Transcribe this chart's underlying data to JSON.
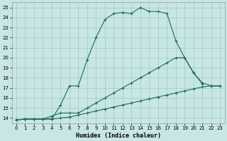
{
  "xlabel": "Humidex (Indice chaleur)",
  "background_color": "#c8e6e6",
  "grid_color": "#a8cccc",
  "line_color": "#1a6b5a",
  "xlim": [
    -0.5,
    23.5
  ],
  "ylim": [
    13.5,
    25.5
  ],
  "xticks": [
    0,
    1,
    2,
    3,
    4,
    5,
    6,
    7,
    8,
    9,
    10,
    11,
    12,
    13,
    14,
    15,
    16,
    17,
    18,
    19,
    20,
    21,
    22,
    23
  ],
  "yticks": [
    14,
    15,
    16,
    17,
    18,
    19,
    20,
    21,
    22,
    23,
    24,
    25
  ],
  "s1x": [
    0,
    1,
    2,
    3,
    4,
    5,
    6,
    7,
    8,
    9,
    10,
    11,
    12,
    13,
    14,
    15,
    16,
    17,
    18,
    19,
    20,
    21
  ],
  "s1y": [
    13.8,
    13.9,
    13.9,
    13.9,
    13.9,
    15.3,
    17.2,
    17.2,
    19.8,
    22.0,
    23.8,
    24.4,
    24.5,
    24.4,
    25.0,
    24.6,
    24.6,
    24.4,
    21.7,
    20.0,
    18.5,
    17.4
  ],
  "s2x": [
    0,
    1,
    2,
    3,
    4,
    5,
    6,
    7,
    8,
    9,
    10,
    11,
    12,
    13,
    14,
    15,
    16,
    17,
    18,
    19,
    20,
    21,
    22,
    23
  ],
  "s2y": [
    13.8,
    13.9,
    13.9,
    13.9,
    14.2,
    14.5,
    14.5,
    14.5,
    15.0,
    15.5,
    16.0,
    16.5,
    17.0,
    17.5,
    18.0,
    18.5,
    19.0,
    19.5,
    20.0,
    20.0,
    18.5,
    17.5,
    17.2,
    17.2
  ],
  "s3x": [
    0,
    1,
    2,
    3,
    4,
    5,
    6,
    7,
    8,
    9,
    10,
    11,
    12,
    13,
    14,
    15,
    16,
    17,
    18,
    19,
    20,
    21,
    22,
    23
  ],
  "s3y": [
    13.8,
    13.9,
    13.9,
    13.9,
    13.9,
    14.0,
    14.1,
    14.3,
    14.5,
    14.7,
    14.9,
    15.1,
    15.3,
    15.5,
    15.7,
    15.9,
    16.1,
    16.3,
    16.5,
    16.7,
    16.9,
    17.1,
    17.2,
    17.2
  ]
}
